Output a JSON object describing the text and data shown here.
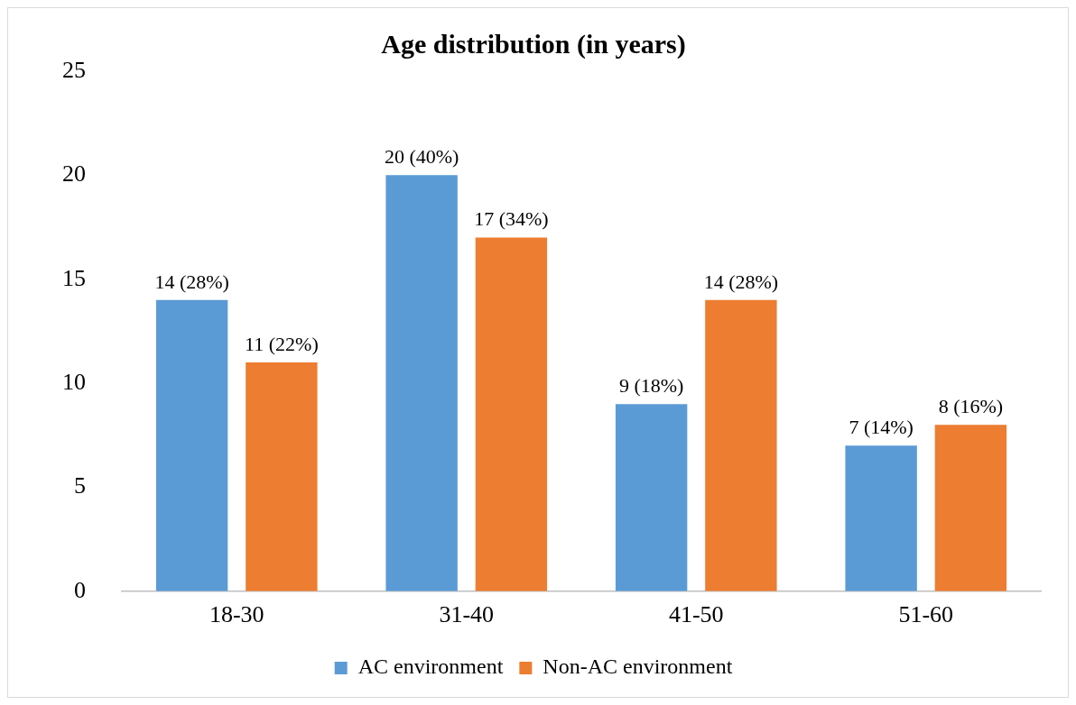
{
  "chart_data": {
    "type": "bar",
    "title": "Age distribution (in years)",
    "categories": [
      "18-30",
      "31-40",
      "41-50",
      "51-60"
    ],
    "series": [
      {
        "name": "AC environment",
        "color": "#5b9bd5",
        "values": [
          14,
          20,
          9,
          7
        ],
        "value_labels": [
          "14 (28%)",
          "20 (40%)",
          "9 (18%)",
          "7 (14%)"
        ]
      },
      {
        "name": "Non-AC environment",
        "color": "#ed7d31",
        "values": [
          11,
          17,
          14,
          8
        ],
        "value_labels": [
          "11 (22%)",
          "17 (34%)",
          "14 (28%)",
          "8 (16%)"
        ]
      }
    ],
    "ylim": [
      0,
      25
    ],
    "yticks": [
      0,
      5,
      10,
      15,
      20,
      25
    ],
    "grid": false,
    "legend": "bottom"
  }
}
